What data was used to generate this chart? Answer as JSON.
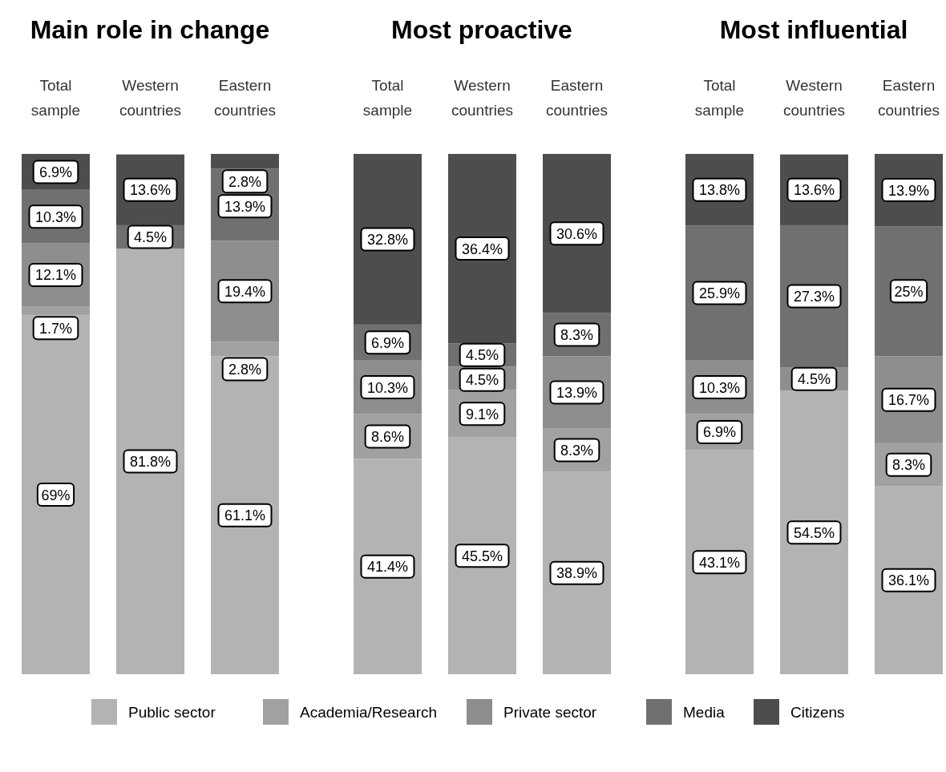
{
  "chart_data": [
    {
      "type": "bar",
      "title": "Main role in change",
      "stacked": true,
      "legend": "bottom",
      "categories": [
        "Total sample",
        "Western countries",
        "Eastern countries"
      ],
      "series": [
        {
          "name": "Public sector",
          "color": "#b3b3b3",
          "values": [
            69,
            81.8,
            61.1
          ],
          "value_labels": [
            "69%",
            "81.8%",
            "61.1%"
          ]
        },
        {
          "name": "Academia/Research",
          "color": "#a1a1a1",
          "values": [
            1.7,
            null,
            2.8
          ],
          "value_labels": [
            "1.7%",
            null,
            "2.8%"
          ]
        },
        {
          "name": "Private sector",
          "color": "#8e8e8e",
          "values": [
            12.1,
            null,
            19.4
          ],
          "value_labels": [
            "12.1%",
            null,
            "19.4%"
          ]
        },
        {
          "name": "Media",
          "color": "#707070",
          "values": [
            10.3,
            4.5,
            13.9
          ],
          "value_labels": [
            "10.3%",
            "4.5%",
            "13.9%"
          ]
        },
        {
          "name": "Citizens",
          "color": "#4d4d4d",
          "values": [
            6.9,
            13.6,
            2.8
          ],
          "value_labels": [
            "6.9%",
            "13.6%",
            "2.8%"
          ]
        }
      ]
    },
    {
      "type": "bar",
      "title": "Most proactive",
      "stacked": true,
      "categories": [
        "Total sample",
        "Western countries",
        "Eastern countries"
      ],
      "series": [
        {
          "color": "#b3b3b3",
          "values": [
            41.4,
            45.5,
            38.9
          ],
          "value_labels": [
            "41.4%",
            "45.5%",
            "38.9%"
          ]
        },
        {
          "color": "#a1a1a1",
          "values": [
            8.6,
            9.1,
            8.3
          ],
          "value_labels": [
            "8.6%",
            "9.1%",
            "8.3%"
          ]
        },
        {
          "color": "#8e8e8e",
          "values": [
            10.3,
            4.5,
            13.9
          ],
          "value_labels": [
            "10.3%",
            "4.5%",
            "13.9%"
          ]
        },
        {
          "color": "#707070",
          "values": [
            6.9,
            4.5,
            8.3
          ],
          "value_labels": [
            "6.9%",
            "4.5%",
            "8.3%"
          ]
        },
        {
          "color": "#4d4d4d",
          "values": [
            32.8,
            36.4,
            30.6
          ],
          "value_labels": [
            "32.8%",
            "36.4%",
            "30.6%"
          ]
        }
      ]
    },
    {
      "type": "bar",
      "title": "Most influential",
      "stacked": true,
      "categories": [
        "Total sample",
        "Western countries",
        "Eastern countries"
      ],
      "series": [
        {
          "color": "#b3b3b3",
          "values": [
            43.1,
            54.5,
            36.1
          ],
          "value_labels": [
            "43.1%",
            "54.5%",
            "36.1%"
          ]
        },
        {
          "color": "#a1a1a1",
          "values": [
            6.9,
            null,
            8.3
          ],
          "value_labels": [
            "6.9%",
            null,
            "8.3%"
          ]
        },
        {
          "color": "#8e8e8e",
          "values": [
            10.3,
            4.5,
            16.7
          ],
          "value_labels": [
            "10.3%",
            "4.5%",
            "16.7%"
          ]
        },
        {
          "color": "#707070",
          "values": [
            25.9,
            27.3,
            25
          ],
          "value_labels": [
            "25.9%",
            "27.3%",
            "25%"
          ]
        },
        {
          "color": "#4d4d4d",
          "values": [
            13.8,
            13.6,
            13.9
          ],
          "value_labels": [
            "13.8%",
            "13.6%",
            "13.9%"
          ]
        }
      ]
    }
  ]
}
